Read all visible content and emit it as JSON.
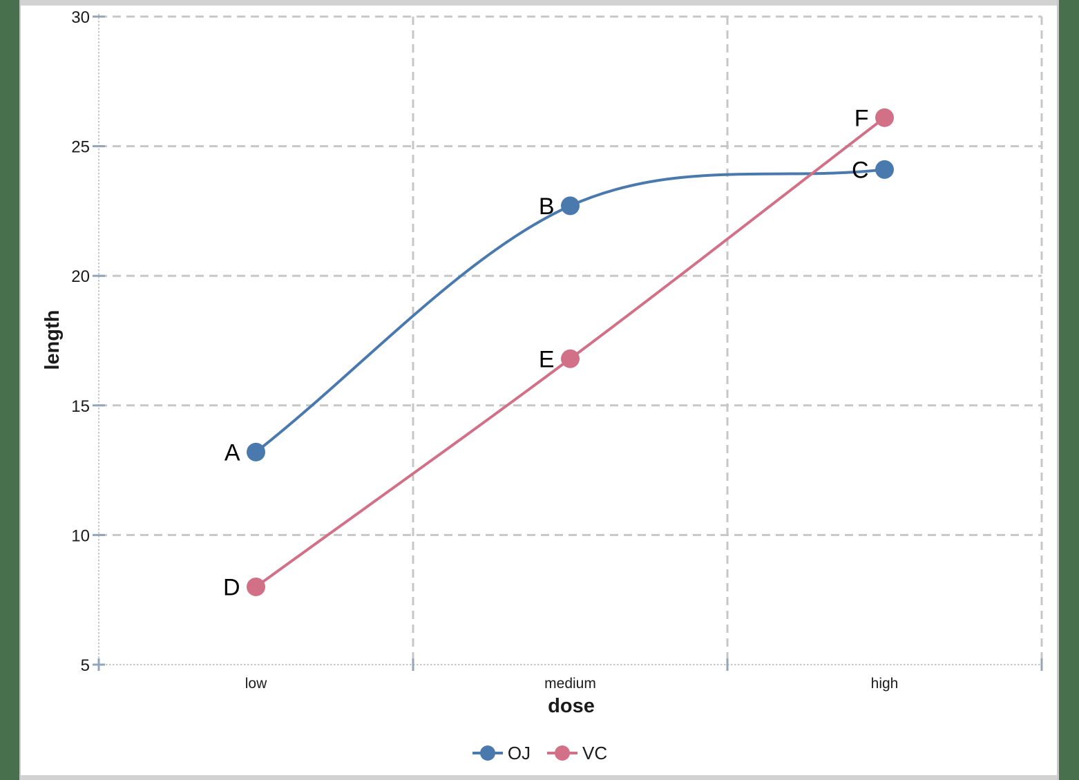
{
  "chart_data": {
    "type": "line",
    "categories": [
      "low",
      "medium",
      "high"
    ],
    "xlabel": "dose",
    "ylabel": "length",
    "ylim": [
      5,
      30
    ],
    "yticks": [
      30,
      25,
      20,
      15,
      10,
      5
    ],
    "grid": "dashed gray horizontal gridlines at each y tick and dashed vertical lines at category boundaries",
    "legend_position": "bottom-center",
    "series": [
      {
        "name": "OJ",
        "color": "#4A79AD",
        "values": [
          13.2,
          22.7,
          24.1
        ],
        "point_labels": [
          "A",
          "B",
          "C"
        ],
        "line_style": "smoothed"
      },
      {
        "name": "VC",
        "color": "#D17087",
        "values": [
          8.0,
          16.8,
          26.1
        ],
        "point_labels": [
          "D",
          "E",
          "F"
        ],
        "line_style": "smoothed"
      }
    ]
  },
  "palette": {
    "background_green": "#48704D",
    "frame_gray": "#D2D2D2",
    "gridline": "#C7C7C7",
    "axis_line": "#C6C6C6",
    "tick": "#93A5B8",
    "text": "#1A1A1A"
  }
}
